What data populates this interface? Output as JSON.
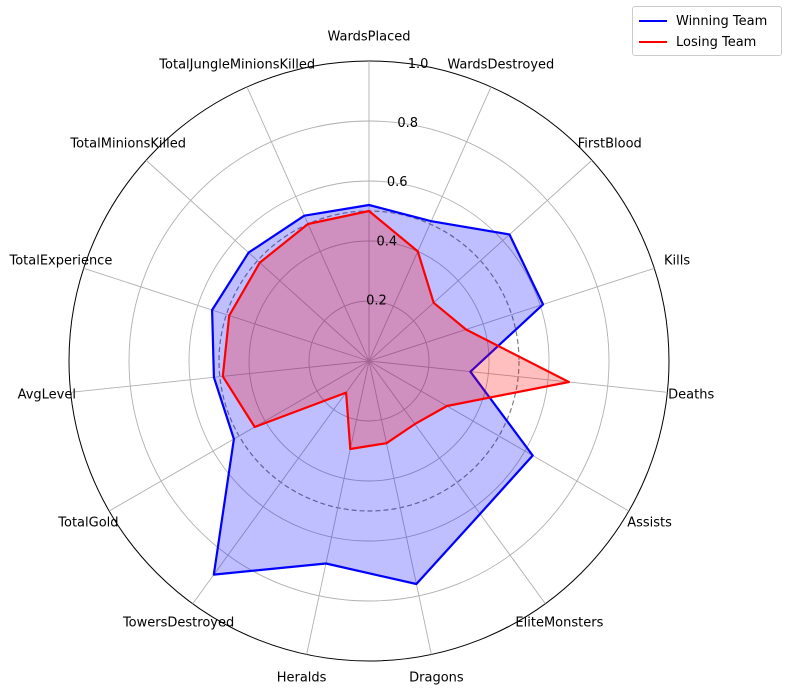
{
  "chart_data": {
    "type": "radar",
    "categories": [
      "WardsPlaced",
      "WardsDestroyed",
      "FirstBlood",
      "Kills",
      "Deaths",
      "Assists",
      "EliteMonsters",
      "Dragons",
      "Heralds",
      "TowersDestroyed",
      "TotalGold",
      "AvgLevel",
      "TotalExperience",
      "TotalMinionsKilled",
      "TotalJungleMinionsKilled"
    ],
    "radial_ticks": [
      0.2,
      0.4,
      0.6,
      0.8,
      1.0
    ],
    "radial_tick_labels": [
      "0.2",
      "0.4",
      "0.6",
      "0.8",
      "1.0"
    ],
    "rlim": [
      0,
      1.0
    ],
    "reference_circle": 0.5,
    "grid": true,
    "legend_position": "top-right",
    "series": [
      {
        "name": "Winning Team",
        "color": "#0000ff",
        "fill": "#0000ff",
        "values": [
          0.52,
          0.51,
          0.63,
          0.61,
          0.34,
          0.63,
          0.63,
          0.76,
          0.69,
          0.88,
          0.52,
          0.52,
          0.55,
          0.54,
          0.53
        ]
      },
      {
        "name": "Losing Team",
        "color": "#ff0000",
        "fill": "#ff0000",
        "values": [
          0.5,
          0.4,
          0.29,
          0.34,
          0.67,
          0.3,
          0.26,
          0.28,
          0.3,
          0.13,
          0.44,
          0.49,
          0.49,
          0.49,
          0.5
        ]
      }
    ]
  }
}
